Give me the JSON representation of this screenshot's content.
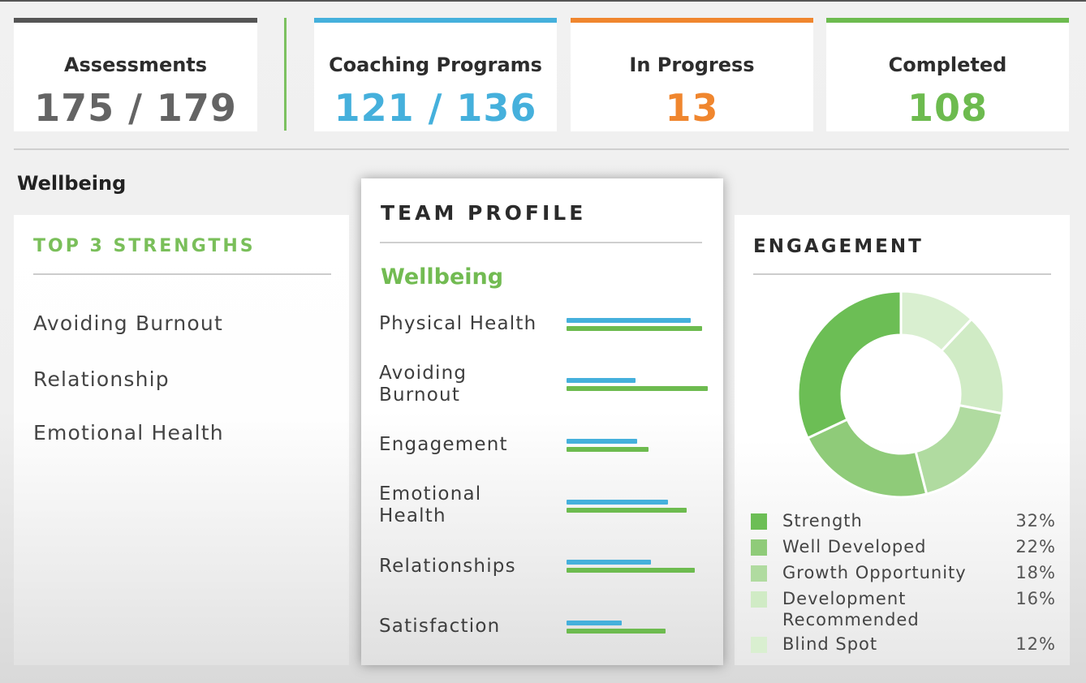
{
  "stats": [
    {
      "label": "Assessments",
      "value": "175 / 179",
      "bar_color": "#555555",
      "value_color": "#646464"
    },
    {
      "label": "Coaching Programs",
      "value": "121 / 136",
      "bar_color": "#45b0dc",
      "value_color": "#45b0dc"
    },
    {
      "label": "In Progress",
      "value": "13",
      "bar_color": "#f0862e",
      "value_color": "#f0862e"
    },
    {
      "label": "Completed",
      "value": "108",
      "bar_color": "#6dbb4f",
      "value_color": "#6dbb4f"
    }
  ],
  "section_title": "Wellbeing",
  "top_strengths": {
    "title": "TOP 3 STRENGTHS",
    "items": [
      "Avoiding Burnout",
      "Relationship",
      "Emotional Health"
    ]
  },
  "team_profile": {
    "title": "TEAM PROFILE",
    "subtitle": "Wellbeing",
    "colors": {
      "blue": "#45b0dc",
      "green": "#6dbb4f"
    }
  },
  "engagement": {
    "title": "ENGAGEMENT"
  },
  "chart_data": [
    {
      "type": "bar",
      "title": "TEAM PROFILE - Wellbeing",
      "orientation": "horizontal",
      "categories": [
        "Physical Health",
        "Avoiding Burnout",
        "Engagement",
        "Emotional Health",
        "Relationships",
        "Satisfaction"
      ],
      "series": [
        {
          "name": "blue",
          "color": "#45b0dc",
          "values": [
            88,
            49,
            50,
            72,
            60,
            39
          ]
        },
        {
          "name": "green",
          "color": "#6dbb4f",
          "values": [
            96,
            100,
            58,
            85,
            91,
            70
          ]
        }
      ],
      "xlabel": "",
      "ylabel": "",
      "xlim": [
        0,
        100
      ],
      "grid": false
    },
    {
      "type": "pie",
      "title": "ENGAGEMENT",
      "donut": true,
      "labels": [
        "Strength",
        "Well Developed",
        "Growth Opportunity",
        "Development Recommended",
        "Blind Spot"
      ],
      "values": [
        32,
        22,
        18,
        16,
        12
      ],
      "value_labels": [
        "32%",
        "22%",
        "18%",
        "16%",
        "12%"
      ],
      "colors": [
        "#6cbe55",
        "#8fcb79",
        "#b0dba0",
        "#d0ebc5",
        "#d9efd0"
      ],
      "legend_position": "bottom"
    }
  ]
}
